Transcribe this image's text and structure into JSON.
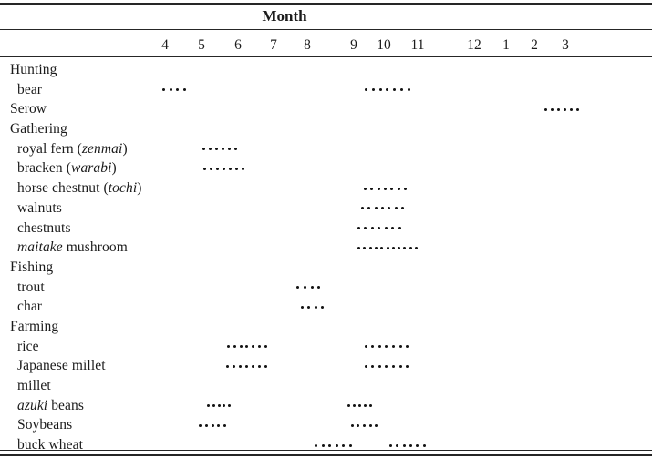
{
  "table": {
    "title": "Month",
    "months": [
      "4",
      "5",
      "6",
      "7",
      "8",
      "9",
      "10",
      "11",
      "12",
      "1",
      "2",
      "3"
    ],
    "rows": [
      {
        "label": [
          {
            "t": "Hunting"
          }
        ],
        "level": 0,
        "groups": []
      },
      {
        "label": [
          {
            "t": "bear"
          }
        ],
        "level": 1,
        "groups": [
          {
            "span": [
              -0.08,
              0.5
            ],
            "dots": 4
          },
          {
            "span": [
              5.36,
              6.7
            ],
            "dots": 7
          }
        ]
      },
      {
        "label": [
          {
            "t": "Serow"
          }
        ],
        "level": 0,
        "groups": [
          {
            "span": [
              10.32,
              11.35
            ],
            "dots": 6
          }
        ]
      },
      {
        "label": [
          {
            "t": "Gathering"
          }
        ],
        "level": 0,
        "groups": []
      },
      {
        "label": [
          {
            "t": "royal fern ("
          },
          {
            "t": "zenmai",
            "i": true
          },
          {
            "t": ")"
          }
        ],
        "level": 1,
        "groups": [
          {
            "span": [
              1.03,
              1.9
            ],
            "dots": 6
          }
        ]
      },
      {
        "label": [
          {
            "t": "bracken ("
          },
          {
            "t": "warabi",
            "i": true
          },
          {
            "t": ")"
          }
        ],
        "level": 1,
        "groups": [
          {
            "span": [
              1.05,
              2.1
            ],
            "dots": 7
          }
        ]
      },
      {
        "label": [
          {
            "t": "horse chestnut ("
          },
          {
            "t": "tochi",
            "i": true
          },
          {
            "t": ")"
          }
        ],
        "level": 1,
        "groups": [
          {
            "span": [
              5.33,
              6.59
            ],
            "dots": 7
          }
        ]
      },
      {
        "label": [
          {
            "t": "walnuts"
          }
        ],
        "level": 1,
        "groups": [
          {
            "span": [
              5.24,
              6.51
            ],
            "dots": 7
          }
        ]
      },
      {
        "label": [
          {
            "t": "chestnuts"
          }
        ],
        "level": 1,
        "groups": [
          {
            "span": [
              5.12,
              6.43
            ],
            "dots": 7
          }
        ]
      },
      {
        "label": [
          {
            "t": "maitake",
            "i": true
          },
          {
            "t": " mushroom"
          }
        ],
        "level": 1,
        "groups": [
          {
            "span": [
              5.12,
              6.92
            ],
            "dots": 11
          }
        ]
      },
      {
        "label": [
          {
            "t": "Fishing"
          }
        ],
        "level": 0,
        "groups": []
      },
      {
        "label": [
          {
            "t": "trout"
          }
        ],
        "level": 1,
        "groups": [
          {
            "span": [
              3.68,
              4.22
            ],
            "dots": 4
          }
        ]
      },
      {
        "label": [
          {
            "t": "char"
          }
        ],
        "level": 1,
        "groups": [
          {
            "span": [
              3.81,
              4.29
            ],
            "dots": 4
          }
        ]
      },
      {
        "label": [
          {
            "t": "Farming"
          }
        ],
        "level": 0,
        "groups": []
      },
      {
        "label": [
          {
            "t": "rice"
          }
        ],
        "level": 1,
        "groups": [
          {
            "span": [
              1.7,
              2.74
            ],
            "dots": 7
          },
          {
            "span": [
              5.36,
              6.65
            ],
            "dots": 7
          }
        ]
      },
      {
        "label": [
          {
            "t": "Japanese millet"
          }
        ],
        "level": 1,
        "groups": [
          {
            "span": [
              1.68,
              2.74
            ],
            "dots": 7
          },
          {
            "span": [
              5.36,
              6.65
            ],
            "dots": 7
          }
        ]
      },
      {
        "label": [
          {
            "t": "millet"
          }
        ],
        "level": 1,
        "groups": []
      },
      {
        "label": [
          {
            "t": "azuki",
            "i": true
          },
          {
            "t": " beans"
          }
        ],
        "level": 1,
        "groups": [
          {
            "span": [
              1.15,
              1.73
            ],
            "dots": 5
          },
          {
            "span": [
              4.86,
              5.52
            ],
            "dots": 5
          }
        ]
      },
      {
        "label": [
          {
            "t": "Soybeans"
          }
        ],
        "level": 1,
        "groups": [
          {
            "span": [
              0.93,
              1.6
            ],
            "dots": 5
          },
          {
            "span": [
              4.94,
              5.7
            ],
            "dots": 5
          }
        ]
      },
      {
        "label": [
          {
            "t": "buck wheat"
          }
        ],
        "level": 1,
        "groups": [
          {
            "span": [
              4.16,
              4.9
            ],
            "dots": 6
          },
          {
            "span": [
              6.16,
              7.09
            ],
            "dots": 6
          }
        ]
      }
    ]
  },
  "colors": {
    "background": "#ffffff",
    "text": "#1b1b1b",
    "rule": "#262626",
    "dot": "#141414"
  },
  "chart_data": {
    "type": "table",
    "title": "Month",
    "columns": [
      "4",
      "5",
      "6",
      "7",
      "8",
      "9",
      "10",
      "11",
      "12",
      "1",
      "2",
      "3"
    ],
    "description": "Seasonal calendar: dotted runs mark months of each activity (April through March order)",
    "legend_position": "none",
    "grid": false,
    "rows": [
      {
        "label": "Hunting",
        "category": true,
        "runs": []
      },
      {
        "label": "bear",
        "runs": [
          {
            "start_month": 3.9,
            "end_month": 4.5,
            "dots": 4
          },
          {
            "start_month": 9.4,
            "end_month": 10.7,
            "dots": 7
          }
        ]
      },
      {
        "label": "Serow",
        "runs": [
          {
            "start_month": 2.3,
            "end_month": 3.4,
            "dots": 6
          }
        ]
      },
      {
        "label": "Gathering",
        "category": true,
        "runs": []
      },
      {
        "label": "royal fern (zenmai)",
        "runs": [
          {
            "start_month": 5.0,
            "end_month": 5.9,
            "dots": 6
          }
        ]
      },
      {
        "label": "bracken (warabi)",
        "runs": [
          {
            "start_month": 5.1,
            "end_month": 6.1,
            "dots": 7
          }
        ]
      },
      {
        "label": "horse chestnut (tochi)",
        "runs": [
          {
            "start_month": 9.3,
            "end_month": 10.6,
            "dots": 7
          }
        ]
      },
      {
        "label": "walnuts",
        "runs": [
          {
            "start_month": 9.2,
            "end_month": 10.5,
            "dots": 7
          }
        ]
      },
      {
        "label": "chestnuts",
        "runs": [
          {
            "start_month": 9.1,
            "end_month": 10.4,
            "dots": 7
          }
        ]
      },
      {
        "label": "maitake mushroom",
        "runs": [
          {
            "start_month": 9.1,
            "end_month": 10.9,
            "dots": 11
          }
        ]
      },
      {
        "label": "Fishing",
        "category": true,
        "runs": []
      },
      {
        "label": "trout",
        "runs": [
          {
            "start_month": 7.7,
            "end_month": 8.2,
            "dots": 4
          }
        ]
      },
      {
        "label": "char",
        "runs": [
          {
            "start_month": 7.8,
            "end_month": 8.3,
            "dots": 4
          }
        ]
      },
      {
        "label": "Farming",
        "category": true,
        "runs": []
      },
      {
        "label": "rice",
        "runs": [
          {
            "start_month": 5.7,
            "end_month": 6.7,
            "dots": 7
          },
          {
            "start_month": 9.4,
            "end_month": 10.7,
            "dots": 7
          }
        ]
      },
      {
        "label": "Japanese millet",
        "runs": [
          {
            "start_month": 5.7,
            "end_month": 6.7,
            "dots": 7
          },
          {
            "start_month": 9.4,
            "end_month": 10.7,
            "dots": 7
          }
        ]
      },
      {
        "label": "millet",
        "runs": []
      },
      {
        "label": "azuki beans",
        "runs": [
          {
            "start_month": 5.2,
            "end_month": 5.7,
            "dots": 5
          },
          {
            "start_month": 8.9,
            "end_month": 9.5,
            "dots": 5
          }
        ]
      },
      {
        "label": "Soybeans",
        "runs": [
          {
            "start_month": 4.9,
            "end_month": 5.6,
            "dots": 5
          },
          {
            "start_month": 8.9,
            "end_month": 9.7,
            "dots": 5
          }
        ]
      },
      {
        "label": "buck wheat",
        "runs": [
          {
            "start_month": 8.2,
            "end_month": 8.9,
            "dots": 6
          },
          {
            "start_month": 10.2,
            "end_month": 11.1,
            "dots": 6
          }
        ]
      }
    ]
  }
}
